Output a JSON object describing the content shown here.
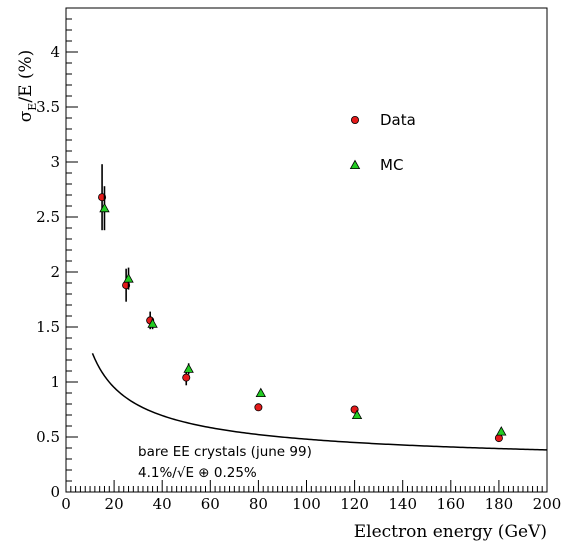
{
  "chart_data": {
    "type": "scatter",
    "xlabel": "Electron energy (GeV)",
    "ylabel_main": "σ",
    "ylabel_sub": "E",
    "ylabel_rest": "/E (%)",
    "xlim": [
      0,
      200
    ],
    "ylim": [
      0,
      4.4
    ],
    "xticks": [
      0,
      20,
      40,
      60,
      80,
      100,
      120,
      140,
      160,
      180,
      200
    ],
    "yticks": [
      0,
      0.5,
      1,
      1.5,
      2,
      2.5,
      3,
      3.5,
      4
    ],
    "ytick_labels": [
      "0",
      "0.5",
      "1",
      "1.5",
      "2",
      "2.5",
      "3",
      "3.5",
      "4"
    ],
    "grid": false,
    "legend_position": "right-upper",
    "series": [
      {
        "name": "Data",
        "marker": "circle",
        "color": "#e41a1a",
        "points": [
          {
            "x": 15,
            "y": 2.68,
            "err": 0.3
          },
          {
            "x": 25,
            "y": 1.88,
            "err": 0.15
          },
          {
            "x": 35,
            "y": 1.56,
            "err": 0.08
          },
          {
            "x": 50,
            "y": 1.04,
            "err": 0.07
          },
          {
            "x": 80,
            "y": 0.77,
            "err": 0.03
          },
          {
            "x": 120,
            "y": 0.75,
            "err": 0.03
          },
          {
            "x": 180,
            "y": 0.49,
            "err": 0.02
          }
        ]
      },
      {
        "name": "MC",
        "marker": "triangle",
        "color": "#22cc22",
        "points": [
          {
            "x": 16,
            "y": 2.58,
            "err": 0.2
          },
          {
            "x": 26,
            "y": 1.94,
            "err": 0.1
          },
          {
            "x": 36,
            "y": 1.53,
            "err": 0.05
          },
          {
            "x": 51,
            "y": 1.12,
            "err": 0.05
          },
          {
            "x": 81,
            "y": 0.9,
            "err": 0.02
          },
          {
            "x": 121,
            "y": 0.7,
            "err": 0.02
          },
          {
            "x": 181,
            "y": 0.55,
            "err": 0.02
          }
        ]
      }
    ],
    "curve": {
      "stochastic_percent": 4.1,
      "constant_percent": 0.25,
      "x_range": [
        11,
        200
      ]
    },
    "annotation_lines": [
      "bare EE crystals (june 99)",
      "4.1%/√E ⊕ 0.25%"
    ]
  }
}
